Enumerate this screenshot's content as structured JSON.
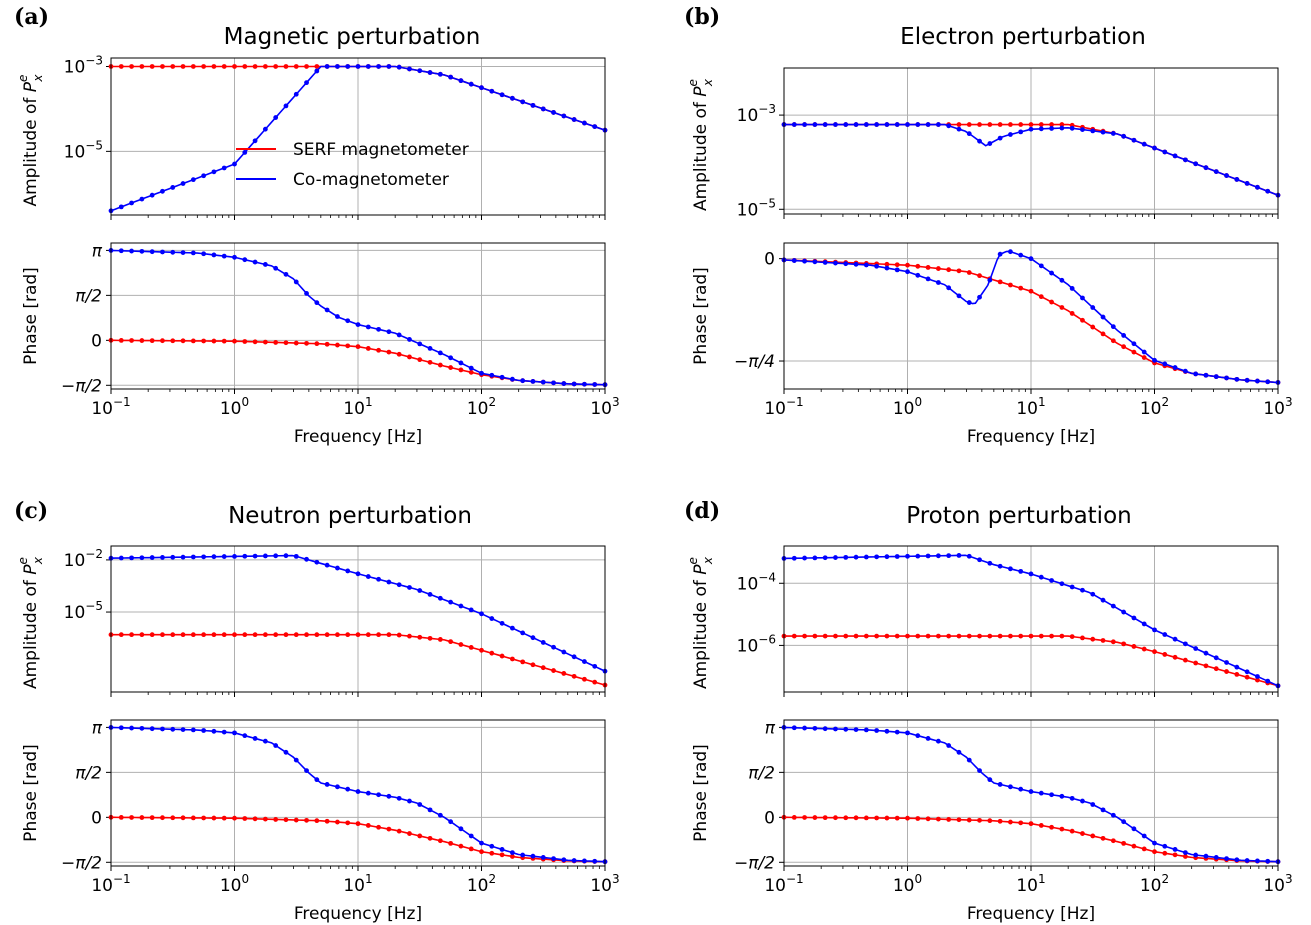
{
  "colors": {
    "serf": "#ff0000",
    "co": "#0000ff",
    "grid": "#b0b0b0",
    "axis": "#000000"
  },
  "legend": {
    "serf": "SERF magnetometer",
    "co": "Co-magnetometer",
    "placement": "center (panel a amplitude)"
  },
  "chart_data": [
    {
      "type": "line",
      "panel_label": "(a)",
      "title": "Magnetic perturbation",
      "xlabel": "Frequency [Hz]",
      "xscale": "log",
      "xlim": [
        0.1,
        1000
      ],
      "xticks": [
        {
          "base": "10",
          "exp": "−1",
          "value": 0.1
        },
        {
          "base": "10",
          "exp": "0",
          "value": 1
        },
        {
          "base": "10",
          "exp": "1",
          "value": 10
        },
        {
          "base": "10",
          "exp": "2",
          "value": 100
        },
        {
          "base": "10",
          "exp": "3",
          "value": 1000
        }
      ],
      "amp": {
        "ylabel_main": "Amplitude of ",
        "ylabel_sym": "P",
        "ylabel_sup": "e",
        "ylabel_sub": "x",
        "yscale": "log",
        "ylog_range": [
          -6.5,
          -2.8
        ],
        "yticks": [
          {
            "base": "10",
            "exp": "−3",
            "log": -3
          },
          {
            "base": "10",
            "exp": "−5",
            "log": -5
          }
        ],
        "series": [
          {
            "name": "SERF magnetometer",
            "log10_points": [
              [
                0.1,
                -3.0
              ],
              [
                20,
                -3.0
              ],
              [
                50,
                -3.2
              ],
              [
                100,
                -3.5
              ],
              [
                1000,
                -4.5
              ]
            ]
          },
          {
            "name": "Co-magnetometer",
            "log10_points": [
              [
                0.1,
                -6.4
              ],
              [
                1,
                -5.3
              ],
              [
                5,
                -3.0
              ],
              [
                20,
                -3.0
              ],
              [
                50,
                -3.2
              ],
              [
                100,
                -3.5
              ],
              [
                1000,
                -4.5
              ]
            ]
          }
        ]
      },
      "phase": {
        "ylabel": "Phase [rad]",
        "ylim": [
          -1.7,
          3.4
        ],
        "yticks": [
          {
            "label": "π",
            "value": 3.1416
          },
          {
            "label": "π/2",
            "value": 1.5708
          },
          {
            "label": "0",
            "value": 0
          },
          {
            "label": "−π/2",
            "value": -1.5708
          }
        ],
        "series": [
          {
            "name": "SERF magnetometer",
            "points": [
              [
                0.1,
                0.0
              ],
              [
                1,
                -0.03
              ],
              [
                5,
                -0.12
              ],
              [
                10,
                -0.22
              ],
              [
                20,
                -0.45
              ],
              [
                50,
                -0.9
              ],
              [
                100,
                -1.2
              ],
              [
                200,
                -1.4
              ],
              [
                500,
                -1.52
              ],
              [
                1000,
                -1.55
              ]
            ]
          },
          {
            "name": "Co-magnetometer",
            "points": [
              [
                0.1,
                3.14
              ],
              [
                0.5,
                3.05
              ],
              [
                1,
                2.9
              ],
              [
                2,
                2.6
              ],
              [
                3,
                2.15
              ],
              [
                4,
                1.55
              ],
              [
                5,
                1.2
              ],
              [
                7,
                0.8
              ],
              [
                10,
                0.55
              ],
              [
                20,
                0.25
              ],
              [
                50,
                -0.5
              ],
              [
                100,
                -1.15
              ],
              [
                200,
                -1.4
              ],
              [
                500,
                -1.52
              ],
              [
                1000,
                -1.55
              ]
            ]
          }
        ]
      }
    },
    {
      "type": "line",
      "panel_label": "(b)",
      "title": "Electron perturbation",
      "xlabel": "Frequency [Hz]",
      "xscale": "log",
      "xlim": [
        0.1,
        1000
      ],
      "xticks": [
        {
          "base": "10",
          "exp": "−1",
          "value": 0.1
        },
        {
          "base": "10",
          "exp": "0",
          "value": 1
        },
        {
          "base": "10",
          "exp": "1",
          "value": 10
        },
        {
          "base": "10",
          "exp": "2",
          "value": 100
        },
        {
          "base": "10",
          "exp": "3",
          "value": 1000
        }
      ],
      "amp": {
        "ylabel_main": "Amplitude of ",
        "ylabel_sym": "P",
        "ylabel_sup": "e",
        "ylabel_sub": "x",
        "yscale": "log",
        "ylog_range": [
          -5.1,
          -2.0
        ],
        "yticks": [
          {
            "base": "10",
            "exp": "−3",
            "log": -3
          },
          {
            "base": "10",
            "exp": "−5",
            "log": -5
          }
        ],
        "series": [
          {
            "name": "SERF magnetometer",
            "log10_points": [
              [
                0.1,
                -3.2
              ],
              [
                20,
                -3.2
              ],
              [
                50,
                -3.4
              ],
              [
                100,
                -3.7
              ],
              [
                1000,
                -4.7
              ]
            ]
          },
          {
            "name": "Co-magnetometer",
            "log10_points": [
              [
                0.1,
                -3.2
              ],
              [
                2,
                -3.2
              ],
              [
                3,
                -3.35
              ],
              [
                4.3,
                -3.65
              ],
              [
                6,
                -3.45
              ],
              [
                10,
                -3.3
              ],
              [
                20,
                -3.27
              ],
              [
                50,
                -3.4
              ],
              [
                100,
                -3.7
              ],
              [
                1000,
                -4.7
              ]
            ]
          }
        ]
      },
      "phase": {
        "ylabel": "Phase [rad]",
        "ylim": [
          -1.0,
          0.12
        ],
        "yticks": [
          {
            "label": "0",
            "value": 0
          },
          {
            "label": "−π/4",
            "value": -0.7854
          }
        ],
        "series": [
          {
            "name": "SERF magnetometer",
            "points": [
              [
                0.1,
                -0.01
              ],
              [
                1,
                -0.05
              ],
              [
                3,
                -0.1
              ],
              [
                10,
                -0.25
              ],
              [
                20,
                -0.4
              ],
              [
                50,
                -0.65
              ],
              [
                100,
                -0.8
              ],
              [
                200,
                -0.88
              ],
              [
                500,
                -0.93
              ],
              [
                1000,
                -0.95
              ]
            ]
          },
          {
            "name": "Co-magnetometer",
            "points": [
              [
                0.1,
                -0.01
              ],
              [
                0.5,
                -0.05
              ],
              [
                1,
                -0.1
              ],
              [
                2,
                -0.2
              ],
              [
                3,
                -0.33
              ],
              [
                3.5,
                -0.35
              ],
              [
                4.5,
                -0.2
              ],
              [
                5.5,
                0.03
              ],
              [
                6.5,
                0.06
              ],
              [
                10,
                0.0
              ],
              [
                20,
                -0.2
              ],
              [
                50,
                -0.55
              ],
              [
                100,
                -0.78
              ],
              [
                200,
                -0.88
              ],
              [
                500,
                -0.93
              ],
              [
                1000,
                -0.95
              ]
            ]
          }
        ]
      }
    },
    {
      "type": "line",
      "panel_label": "(c)",
      "title": "Neutron perturbation",
      "xlabel": "Frequency [Hz]",
      "xscale": "log",
      "xlim": [
        0.1,
        1000
      ],
      "xticks": [
        {
          "base": "10",
          "exp": "−1",
          "value": 0.1
        },
        {
          "base": "10",
          "exp": "0",
          "value": 1
        },
        {
          "base": "10",
          "exp": "1",
          "value": 10
        },
        {
          "base": "10",
          "exp": "2",
          "value": 100
        },
        {
          "base": "10",
          "exp": "3",
          "value": 1000
        }
      ],
      "amp": {
        "ylabel_main": "Amplitude of ",
        "ylabel_sym": "P",
        "ylabel_sup": "e",
        "ylabel_sub": "x",
        "yscale": "log",
        "ylog_range": [
          -9.6,
          -1.2
        ],
        "yticks": [
          {
            "base": "10",
            "exp": "−2",
            "log": -2
          },
          {
            "base": "10",
            "exp": "−5",
            "log": -5
          }
        ],
        "series": [
          {
            "name": "SERF magnetometer",
            "log10_points": [
              [
                0.1,
                -6.3
              ],
              [
                20,
                -6.3
              ],
              [
                50,
                -6.6
              ],
              [
                100,
                -7.2
              ],
              [
                1000,
                -9.2
              ]
            ]
          },
          {
            "name": "Co-magnetometer",
            "log10_points": [
              [
                0.1,
                -1.9
              ],
              [
                3,
                -1.75
              ],
              [
                5,
                -2.2
              ],
              [
                10,
                -2.8
              ],
              [
                30,
                -3.7
              ],
              [
                100,
                -5.1
              ],
              [
                1000,
                -8.4
              ]
            ]
          }
        ]
      },
      "phase": {
        "ylabel": "Phase [rad]",
        "ylim": [
          -1.7,
          3.4
        ],
        "yticks": [
          {
            "label": "π",
            "value": 3.1416
          },
          {
            "label": "π/2",
            "value": 1.5708
          },
          {
            "label": "0",
            "value": 0
          },
          {
            "label": "−π/2",
            "value": -1.5708
          }
        ],
        "series": [
          {
            "name": "SERF magnetometer",
            "points": [
              [
                0.1,
                0.0
              ],
              [
                1,
                -0.03
              ],
              [
                5,
                -0.12
              ],
              [
                10,
                -0.22
              ],
              [
                20,
                -0.45
              ],
              [
                50,
                -0.85
              ],
              [
                100,
                -1.2
              ],
              [
                200,
                -1.4
              ],
              [
                500,
                -1.52
              ],
              [
                1000,
                -1.55
              ]
            ]
          },
          {
            "name": "Co-magnetometer",
            "points": [
              [
                0.1,
                3.14
              ],
              [
                0.5,
                3.05
              ],
              [
                1,
                2.95
              ],
              [
                2,
                2.6
              ],
              [
                3,
                2.1
              ],
              [
                4,
                1.55
              ],
              [
                5,
                1.2
              ],
              [
                10,
                0.9
              ],
              [
                20,
                0.7
              ],
              [
                30,
                0.5
              ],
              [
                50,
                0.0
              ],
              [
                100,
                -0.9
              ],
              [
                200,
                -1.3
              ],
              [
                500,
                -1.5
              ],
              [
                1000,
                -1.55
              ]
            ]
          }
        ]
      }
    },
    {
      "type": "line",
      "panel_label": "(d)",
      "title": "Proton perturbation",
      "xlabel": "Frequency [Hz]",
      "xscale": "log",
      "xlim": [
        0.1,
        1000
      ],
      "xticks": [
        {
          "base": "10",
          "exp": "−1",
          "value": 0.1
        },
        {
          "base": "10",
          "exp": "0",
          "value": 1
        },
        {
          "base": "10",
          "exp": "1",
          "value": 10
        },
        {
          "base": "10",
          "exp": "2",
          "value": 100
        },
        {
          "base": "10",
          "exp": "3",
          "value": 1000
        }
      ],
      "amp": {
        "ylabel_main": "Amplitude of ",
        "ylabel_sym": "P",
        "ylabel_sup": "e",
        "ylabel_sub": "x",
        "yscale": "log",
        "ylog_range": [
          -7.5,
          -2.8
        ],
        "yticks": [
          {
            "base": "10",
            "exp": "−4",
            "log": -4
          },
          {
            "base": "10",
            "exp": "−6",
            "log": -6
          }
        ],
        "series": [
          {
            "name": "SERF magnetometer",
            "log10_points": [
              [
                0.1,
                -5.7
              ],
              [
                20,
                -5.7
              ],
              [
                50,
                -5.9
              ],
              [
                100,
                -6.2
              ],
              [
                1000,
                -7.3
              ]
            ]
          },
          {
            "name": "Co-magnetometer",
            "log10_points": [
              [
                0.1,
                -3.2
              ],
              [
                3,
                -3.1
              ],
              [
                5,
                -3.4
              ],
              [
                10,
                -3.7
              ],
              [
                30,
                -4.3
              ],
              [
                100,
                -5.5
              ],
              [
                1000,
                -7.3
              ]
            ]
          }
        ]
      },
      "phase": {
        "ylabel": "Phase [rad]",
        "ylim": [
          -1.7,
          3.4
        ],
        "yticks": [
          {
            "label": "π",
            "value": 3.1416
          },
          {
            "label": "π/2",
            "value": 1.5708
          },
          {
            "label": "0",
            "value": 0
          },
          {
            "label": "−π/2",
            "value": -1.5708
          }
        ],
        "series": [
          {
            "name": "SERF magnetometer",
            "points": [
              [
                0.1,
                0.0
              ],
              [
                1,
                -0.03
              ],
              [
                5,
                -0.12
              ],
              [
                10,
                -0.22
              ],
              [
                20,
                -0.45
              ],
              [
                50,
                -0.85
              ],
              [
                100,
                -1.2
              ],
              [
                200,
                -1.4
              ],
              [
                500,
                -1.52
              ],
              [
                1000,
                -1.55
              ]
            ]
          },
          {
            "name": "Co-magnetometer",
            "points": [
              [
                0.1,
                3.14
              ],
              [
                0.5,
                3.05
              ],
              [
                1,
                2.95
              ],
              [
                2,
                2.6
              ],
              [
                3,
                2.1
              ],
              [
                4,
                1.55
              ],
              [
                5,
                1.2
              ],
              [
                10,
                0.9
              ],
              [
                20,
                0.7
              ],
              [
                30,
                0.5
              ],
              [
                50,
                0.0
              ],
              [
                100,
                -0.9
              ],
              [
                200,
                -1.3
              ],
              [
                500,
                -1.5
              ],
              [
                1000,
                -1.55
              ]
            ]
          }
        ]
      }
    }
  ]
}
